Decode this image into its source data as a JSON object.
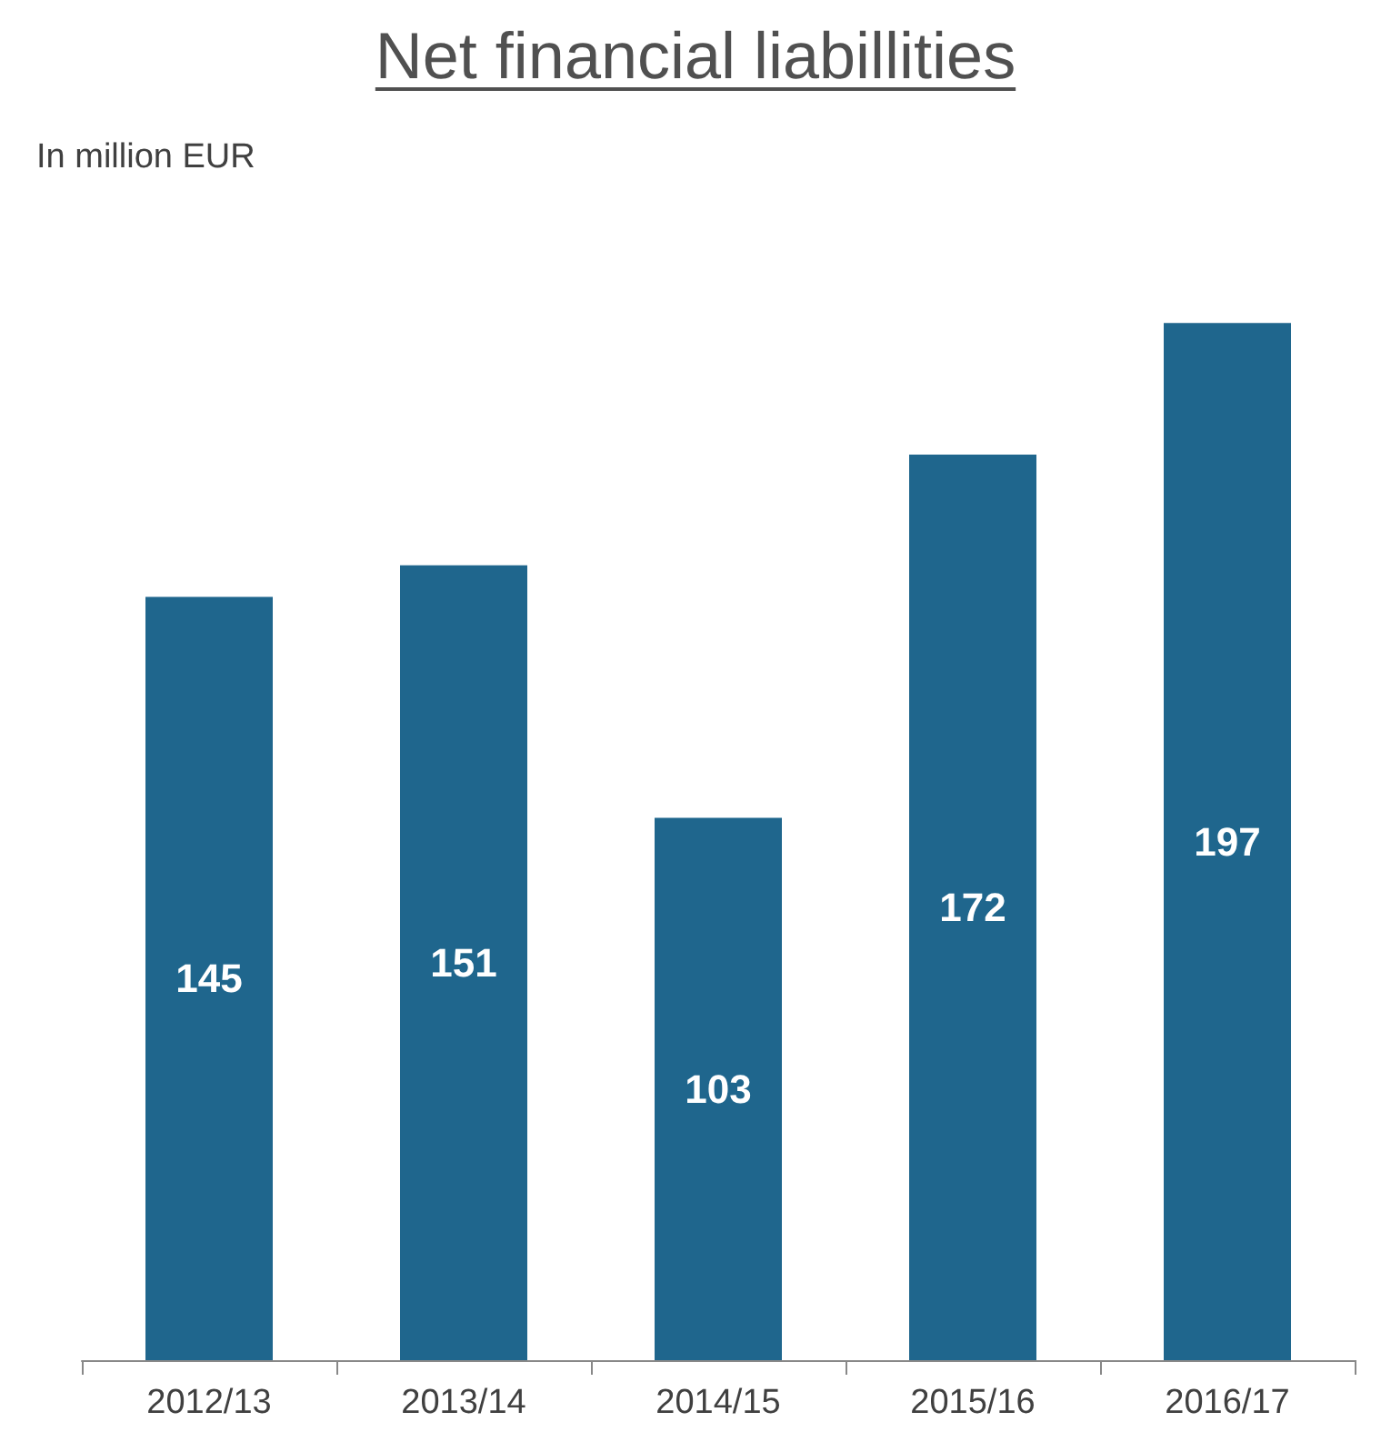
{
  "chart_data": {
    "type": "bar",
    "title": "Net financial liabillities",
    "subtitle": "In million EUR",
    "categories": [
      "2012/13",
      "2013/14",
      "2014/15",
      "2015/16",
      "2016/17"
    ],
    "values": [
      145,
      151,
      103,
      172,
      197
    ],
    "color": "#1f668d",
    "data_labels": true,
    "grid": false
  }
}
